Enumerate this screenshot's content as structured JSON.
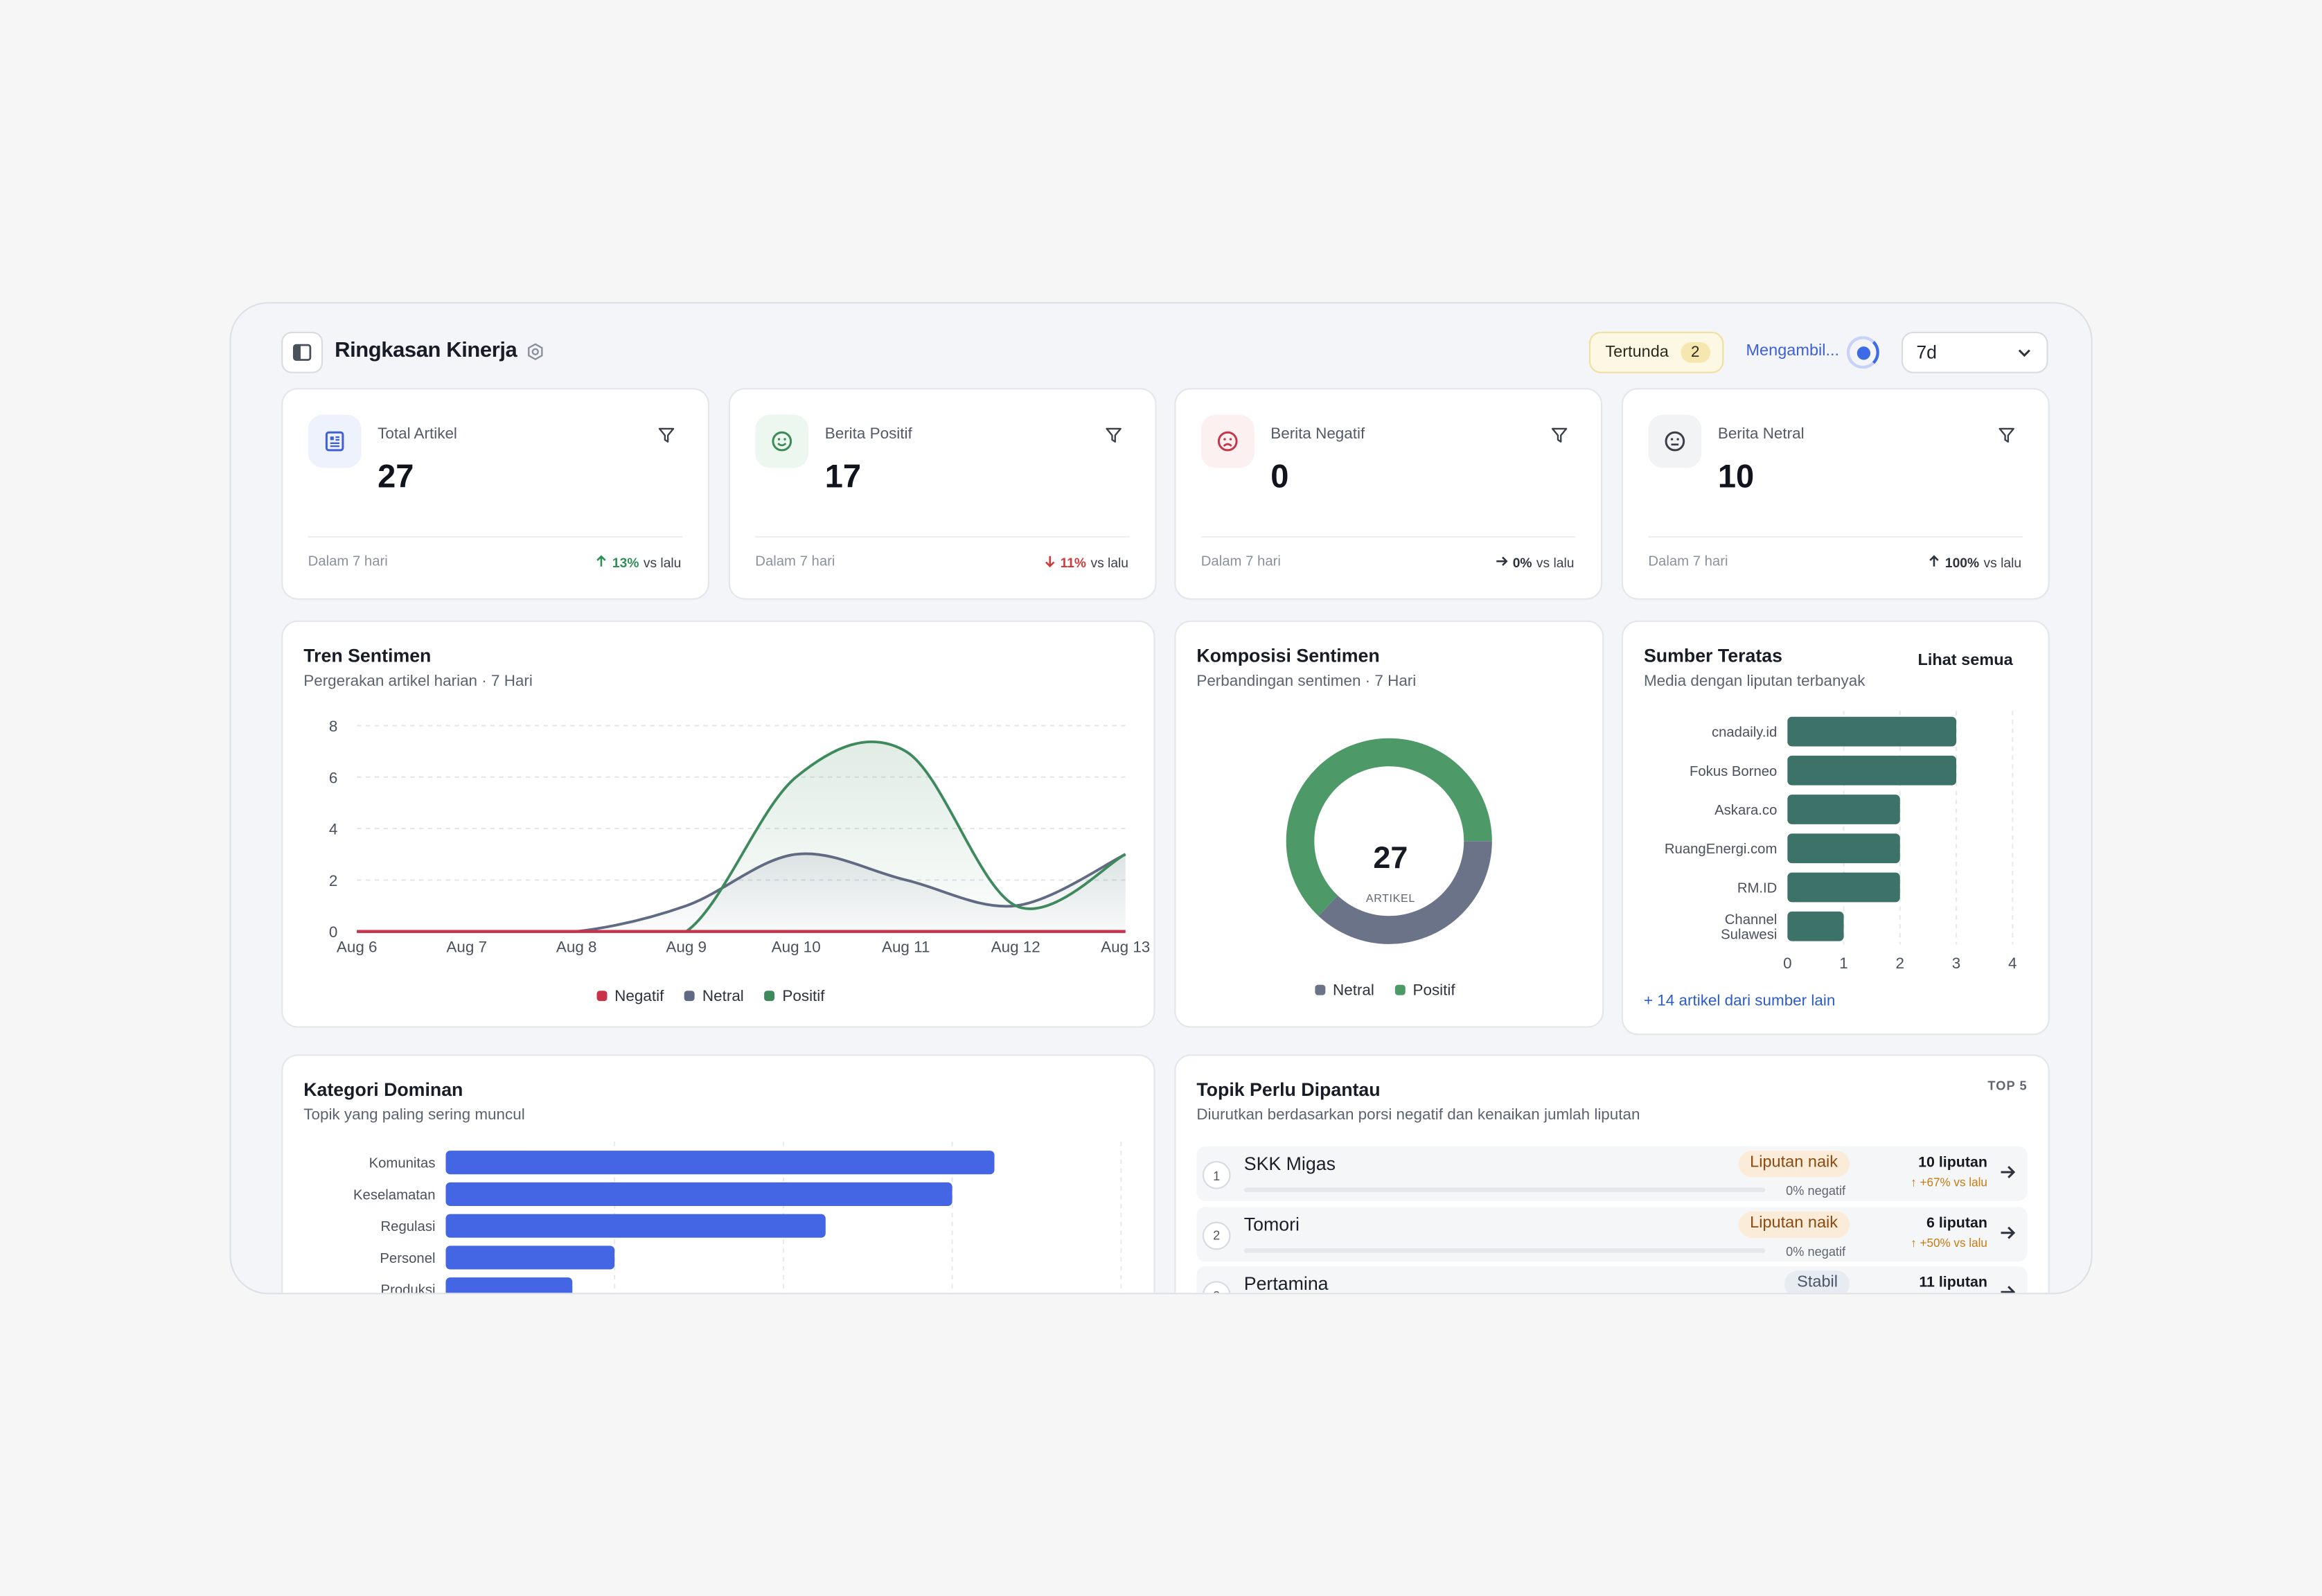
{
  "header": {
    "title": "Ringkasan Kinerja",
    "pending_label": "Tertunda",
    "pending_count": "2",
    "loading_label": "Mengambil...",
    "period_value": "7d"
  },
  "stats": [
    {
      "label": "Total Artikel",
      "value": "27",
      "footer": "Dalam 7 hari",
      "delta": "13%",
      "delta_suffix": "vs lalu",
      "delta_dir": "up",
      "delta_color": "#2f8f57",
      "icon": "document-icon",
      "icon_bg": "#eef2fd",
      "icon_color": "#3d5fd8"
    },
    {
      "label": "Berita Positif",
      "value": "17",
      "footer": "Dalam 7 hari",
      "delta": "11%",
      "delta_suffix": "vs lalu",
      "delta_dir": "down",
      "delta_color": "#d23a3a",
      "icon": "smile-icon",
      "icon_bg": "#ecf7ef",
      "icon_color": "#3a8b55"
    },
    {
      "label": "Berita Negatif",
      "value": "0",
      "footer": "Dalam 7 hari",
      "delta": "0%",
      "delta_suffix": "vs lalu",
      "delta_dir": "right",
      "delta_color": "#2d323d",
      "icon": "frown-icon",
      "icon_bg": "#fcf0f0",
      "icon_color": "#c6364a"
    },
    {
      "label": "Berita Netral",
      "value": "10",
      "footer": "Dalam 7 hari",
      "delta": "100%",
      "delta_suffix": "vs lalu",
      "delta_dir": "up",
      "delta_color": "#2d323d",
      "icon": "neutral-face-icon",
      "icon_bg": "#f2f3f5",
      "icon_color": "#3b3f48"
    }
  ],
  "trend": {
    "title": "Tren Sentimen",
    "subtitle": "Pergerakan artikel harian · 7 Hari"
  },
  "composition": {
    "title": "Komposisi Sentimen",
    "subtitle": "Perbandingan sentimen · 7 Hari",
    "center_value": "27",
    "center_label": "ARTIKEL"
  },
  "sources": {
    "title": "Sumber Teratas",
    "subtitle": "Media dengan liputan terbanyak",
    "see_all": "Lihat semua",
    "more_link": "+ 14 artikel dari sumber lain"
  },
  "categories": {
    "title": "Kategori Dominan",
    "subtitle": "Topik yang paling sering muncul"
  },
  "topics": {
    "title": "Topik Perlu Dipantau",
    "subtitle": "Diurutkan berdasarkan porsi negatif dan kenaikan jumlah liputan",
    "badge": "TOP 5",
    "items": [
      {
        "rank": "1",
        "name": "SKK Migas",
        "status": "Liputan naik",
        "negative": "0% negatif",
        "count": "10 liputan",
        "trend": "+67% vs lalu"
      },
      {
        "rank": "2",
        "name": "Tomori",
        "status": "Liputan naik",
        "negative": "0% negatif",
        "count": "6 liputan",
        "trend": "+50% vs lalu"
      },
      {
        "rank": "3",
        "name": "Pertamina",
        "status": "Stabil",
        "negative": "",
        "count": "11 liputan",
        "trend": ""
      }
    ]
  },
  "chart_data": [
    {
      "type": "area",
      "x": [
        "Aug 6",
        "Aug 7",
        "Aug 8",
        "Aug 9",
        "Aug 10",
        "Aug 11",
        "Aug 12",
        "Aug 13"
      ],
      "ylim": [
        0,
        8
      ],
      "yticks": [
        0,
        2,
        4,
        6,
        8
      ],
      "grid": true,
      "legend": "bottom",
      "series": [
        {
          "name": "Negatif",
          "values": [
            0,
            0,
            0,
            0,
            0,
            0,
            0,
            0
          ],
          "color": "#c8334a"
        },
        {
          "name": "Netral",
          "values": [
            0,
            0,
            0,
            1,
            3,
            2,
            1,
            3
          ],
          "color": "#606a82"
        },
        {
          "name": "Positif",
          "values": [
            0,
            0,
            0,
            0,
            6,
            7,
            1,
            3
          ],
          "color": "#3e8a5c"
        }
      ]
    },
    {
      "type": "pie",
      "donut": true,
      "legend": "bottom",
      "categories": [
        "Netral",
        "Positif"
      ],
      "values": [
        10,
        17
      ],
      "colors": [
        "#6b7389",
        "#4d9a68"
      ]
    },
    {
      "type": "bar",
      "orientation": "horizontal",
      "categories": [
        "cnadaily.id",
        "Fokus Borneo",
        "Askara.co",
        "RuangEnergi.com",
        "RM.ID",
        "Channel Sulawesi"
      ],
      "values": [
        3,
        3,
        2,
        2,
        2,
        1
      ],
      "xlim": [
        0,
        4
      ],
      "xticks": [
        0,
        1,
        2,
        3,
        4
      ],
      "color": "#3c7267"
    },
    {
      "type": "bar",
      "orientation": "horizontal",
      "categories": [
        "Komunitas",
        "Keselamatan",
        "Regulasi",
        "Personel",
        "Produksi"
      ],
      "values": [
        6.5,
        6,
        4.5,
        2,
        1.5
      ],
      "xlim": [
        0,
        8
      ],
      "color": "#4466e4"
    }
  ]
}
